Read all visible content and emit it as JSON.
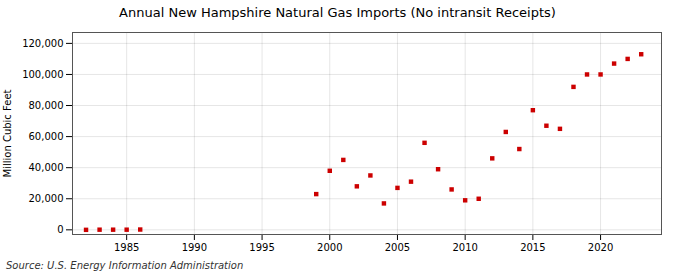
{
  "chart_data": {
    "type": "scatter",
    "title": "Annual New Hampshire Natural Gas Imports (No intransit Receipts)",
    "ylabel": "Million Cubic Feet",
    "source": "Source: U.S. Energy Information Administration",
    "color": "#cc0000",
    "marker": "square",
    "x": [
      1982,
      1983,
      1984,
      1985,
      1986,
      1999,
      2000,
      2001,
      2002,
      2003,
      2004,
      2005,
      2006,
      2007,
      2008,
      2009,
      2010,
      2011,
      2012,
      2013,
      2014,
      2015,
      2016,
      2017,
      2018,
      2019,
      2020,
      2021,
      2022,
      2023
    ],
    "values": [
      0,
      100,
      100,
      100,
      200,
      23000,
      38000,
      45000,
      28000,
      35000,
      17000,
      27000,
      31000,
      56000,
      39000,
      26000,
      19000,
      20000,
      46000,
      63000,
      52000,
      77000,
      67000,
      65000,
      92000,
      100000,
      100000,
      107000,
      110000,
      113000
    ],
    "xlim": [
      1981,
      2024.5
    ],
    "ylim": [
      -3000,
      127000
    ],
    "xticks": [
      1985,
      1990,
      1995,
      2000,
      2005,
      2010,
      2015,
      2020
    ],
    "yticks": [
      0,
      {
        "value": 20000,
        "label": "20,000"
      },
      {
        "value": 40000,
        "label": "40,000"
      },
      {
        "value": 60000,
        "label": "60,000"
      },
      {
        "value": 80000,
        "label": "80,000"
      },
      {
        "value": 100000,
        "label": "100,000"
      },
      {
        "value": 120000,
        "label": "120,000"
      }
    ],
    "grid": true
  }
}
